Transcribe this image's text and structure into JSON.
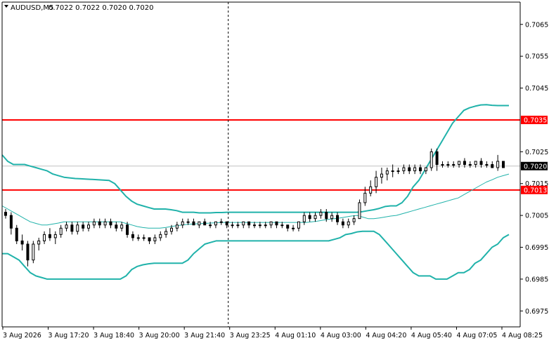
{
  "header": {
    "symbol_timeframe": "AUDUSD,M5",
    "ohlc": "0.7022 0.7022 0.7020 0.7020"
  },
  "colors": {
    "background": "#ffffff",
    "candle": "#000000",
    "band": "#20b2aa",
    "level": "#ff0000",
    "current_price_line": "#c0c0c0",
    "current_price_label_bg": "#000000",
    "cursor_line": "#000000"
  },
  "chart_data": {
    "type": "candlestick",
    "instrument": "AUDUSD",
    "timeframe": "M5",
    "ylim": [
      0.697,
      0.7072
    ],
    "y_ticks": [
      "0.7065",
      "0.7055",
      "0.7045",
      "0.7035",
      "0.7025",
      "0.7015",
      "0.7013",
      "0.7005",
      "0.6995",
      "0.6985",
      "0.6975"
    ],
    "x_ticks": [
      "3 Aug 2026",
      "3 Aug 17:20",
      "3 Aug 18:40",
      "3 Aug 20:00",
      "3 Aug 21:40",
      "3 Aug 23:25",
      "4 Aug 01:10",
      "4 Aug 03:00",
      "4 Aug 04:20",
      "4 Aug 05:40",
      "4 Aug 07:05",
      "4 Aug 08:25"
    ],
    "levels": [
      {
        "price": 0.7035,
        "label": "0.7035"
      },
      {
        "price": 0.7013,
        "label": "0.7013"
      }
    ],
    "current_price": {
      "price": 0.70205,
      "label": "0.7020"
    },
    "cursor_at_tick": 5,
    "bands": {
      "upper": [
        0.7024,
        0.7022,
        0.7021,
        0.7021,
        0.7021,
        0.70205,
        0.702,
        0.70195,
        0.7019,
        0.7018,
        0.70175,
        0.7017,
        0.70168,
        0.70166,
        0.70165,
        0.70164,
        0.70163,
        0.70162,
        0.70161,
        0.7016,
        0.7015,
        0.7013,
        0.7011,
        0.70095,
        0.70085,
        0.7008,
        0.70075,
        0.7007,
        0.7007,
        0.7007,
        0.70068,
        0.70065,
        0.7006,
        0.7006,
        0.7006,
        0.70058,
        0.70058,
        0.70058,
        0.70059,
        0.70059,
        0.7006,
        0.7006,
        0.7006,
        0.7006,
        0.7006,
        0.7006,
        0.7006,
        0.7006,
        0.7006,
        0.7006,
        0.7006,
        0.7006,
        0.7006,
        0.7006,
        0.7006,
        0.7006,
        0.7006,
        0.7006,
        0.7006,
        0.7006,
        0.7006,
        0.7006,
        0.7006,
        0.7006,
        0.70062,
        0.70065,
        0.70068,
        0.70072,
        0.70078,
        0.7008,
        0.7008,
        0.7009,
        0.7011,
        0.7014,
        0.7016,
        0.7019,
        0.7022,
        0.7025,
        0.7028,
        0.7031,
        0.7034,
        0.7036,
        0.7038,
        0.70388,
        0.70393,
        0.70397,
        0.70398,
        0.70396,
        0.70395,
        0.70395,
        0.70395
      ],
      "middle": [
        0.7008,
        0.7007,
        0.7006,
        0.7005,
        0.7004,
        0.7003,
        0.70025,
        0.7002,
        0.7002,
        0.70023,
        0.70026,
        0.7003,
        0.7003,
        0.7003,
        0.7003,
        0.7003,
        0.7003,
        0.7003,
        0.7003,
        0.7003,
        0.7003,
        0.7003,
        0.70025,
        0.7002,
        0.70015,
        0.70012,
        0.7001,
        0.7001,
        0.7001,
        0.70012,
        0.70015,
        0.70018,
        0.7002,
        0.70022,
        0.70023,
        0.70024,
        0.70025,
        0.70026,
        0.70027,
        0.70028,
        0.70028,
        0.70028,
        0.70028,
        0.70028,
        0.70028,
        0.70028,
        0.70028,
        0.70028,
        0.70028,
        0.70028,
        0.70028,
        0.70028,
        0.70028,
        0.70028,
        0.70028,
        0.7003,
        0.70032,
        0.70035,
        0.70038,
        0.7004,
        0.70042,
        0.70045,
        0.70048,
        0.7005,
        0.70045,
        0.7004,
        0.7004,
        0.70042,
        0.70045,
        0.70048,
        0.7005,
        0.70055,
        0.7006,
        0.70065,
        0.7007,
        0.70075,
        0.7008,
        0.70085,
        0.7009,
        0.70095,
        0.701,
        0.70105,
        0.70115,
        0.70125,
        0.70135,
        0.70145,
        0.70155,
        0.70162,
        0.7017,
        0.70175,
        0.7018
      ],
      "lower": [
        0.6993,
        0.6993,
        0.6992,
        0.6991,
        0.6989,
        0.6987,
        0.6986,
        0.69855,
        0.6985,
        0.6985,
        0.6985,
        0.6985,
        0.6985,
        0.6985,
        0.6985,
        0.6985,
        0.6985,
        0.6985,
        0.6985,
        0.6985,
        0.6985,
        0.6985,
        0.6986,
        0.6988,
        0.6989,
        0.69895,
        0.69898,
        0.699,
        0.699,
        0.699,
        0.699,
        0.699,
        0.699,
        0.6991,
        0.6993,
        0.69945,
        0.6996,
        0.69965,
        0.6997,
        0.6997,
        0.6997,
        0.6997,
        0.6997,
        0.6997,
        0.6997,
        0.6997,
        0.6997,
        0.6997,
        0.6997,
        0.6997,
        0.6997,
        0.6997,
        0.6997,
        0.6997,
        0.6997,
        0.6997,
        0.6997,
        0.6997,
        0.6997,
        0.69975,
        0.6998,
        0.6999,
        0.69993,
        0.69998,
        0.7,
        0.7,
        0.7,
        0.6999,
        0.6997,
        0.6995,
        0.6993,
        0.6991,
        0.6989,
        0.6987,
        0.6986,
        0.6986,
        0.6986,
        0.6985,
        0.6985,
        0.6985,
        0.6986,
        0.6987,
        0.6987,
        0.6988,
        0.699,
        0.6991,
        0.6993,
        0.6995,
        0.6996,
        0.6998,
        0.6999
      ]
    },
    "candles": [
      [
        0.7006,
        0.7007,
        0.7004,
        0.7005
      ],
      [
        0.7005,
        0.7006,
        0.6999,
        0.7001
      ],
      [
        0.7001,
        0.7002,
        0.6996,
        0.6997
      ],
      [
        0.6997,
        0.6999,
        0.6994,
        0.6996
      ],
      [
        0.6996,
        0.6997,
        0.6989,
        0.6991
      ],
      [
        0.6991,
        0.6997,
        0.699,
        0.6996
      ],
      [
        0.6996,
        0.6998,
        0.6994,
        0.6997
      ],
      [
        0.6997,
        0.7,
        0.6996,
        0.6999
      ],
      [
        0.6999,
        0.7001,
        0.6997,
        0.6998
      ],
      [
        0.6998,
        0.7,
        0.6996,
        0.6999
      ],
      [
        0.6999,
        0.7002,
        0.6998,
        0.7001
      ],
      [
        0.7001,
        0.7003,
        0.7,
        0.7002
      ],
      [
        0.7002,
        0.7003,
        0.6999,
        0.7
      ],
      [
        0.7,
        0.7003,
        0.6999,
        0.7002
      ],
      [
        0.7002,
        0.7003,
        0.7,
        0.7001
      ],
      [
        0.7001,
        0.7003,
        0.7,
        0.7002
      ],
      [
        0.7002,
        0.7004,
        0.7001,
        0.7003
      ],
      [
        0.7003,
        0.7004,
        0.7001,
        0.7002
      ],
      [
        0.7002,
        0.7004,
        0.7001,
        0.7003
      ],
      [
        0.7003,
        0.7004,
        0.7001,
        0.7002
      ],
      [
        0.7002,
        0.7003,
        0.7,
        0.7001
      ],
      [
        0.7001,
        0.7003,
        0.7,
        0.7002
      ],
      [
        0.7002,
        0.7003,
        0.6998,
        0.6999
      ],
      [
        0.6999,
        0.7,
        0.6997,
        0.6998
      ],
      [
        0.6998,
        0.6999,
        0.6997,
        0.6998
      ],
      [
        0.6998,
        0.6999,
        0.6997,
        0.6998
      ],
      [
        0.6998,
        0.6998,
        0.6996,
        0.6997
      ],
      [
        0.6997,
        0.6999,
        0.6996,
        0.6998
      ],
      [
        0.6998,
        0.7,
        0.6997,
        0.6999
      ],
      [
        0.6999,
        0.7001,
        0.6998,
        0.7
      ],
      [
        0.7,
        0.7002,
        0.6999,
        0.7001
      ],
      [
        0.7001,
        0.7003,
        0.7,
        0.7002
      ],
      [
        0.7002,
        0.7004,
        0.7001,
        0.7003
      ],
      [
        0.7003,
        0.7004,
        0.7002,
        0.7003
      ],
      [
        0.7003,
        0.7004,
        0.7002,
        0.7002
      ],
      [
        0.7002,
        0.7003,
        0.7001,
        0.7003
      ],
      [
        0.7003,
        0.7004,
        0.7002,
        0.7002
      ],
      [
        0.7002,
        0.7003,
        0.7001,
        0.7002
      ],
      [
        0.7002,
        0.7003,
        0.7001,
        0.7003
      ],
      [
        0.7003,
        0.7004,
        0.7002,
        0.7003
      ],
      [
        0.7003,
        0.7003,
        0.7001,
        0.7002
      ],
      [
        0.7002,
        0.7003,
        0.7001,
        0.7002
      ],
      [
        0.7002,
        0.7003,
        0.7001,
        0.7002
      ],
      [
        0.7002,
        0.7003,
        0.7001,
        0.7003
      ],
      [
        0.7003,
        0.7003,
        0.7001,
        0.7002
      ],
      [
        0.7002,
        0.7003,
        0.7001,
        0.7002
      ],
      [
        0.7002,
        0.7003,
        0.7001,
        0.7002
      ],
      [
        0.7002,
        0.7003,
        0.7001,
        0.7002
      ],
      [
        0.7002,
        0.7003,
        0.7001,
        0.7003
      ],
      [
        0.7003,
        0.7003,
        0.7001,
        0.7002
      ],
      [
        0.7002,
        0.7003,
        0.7001,
        0.7002
      ],
      [
        0.7002,
        0.7002,
        0.7,
        0.7001
      ],
      [
        0.7001,
        0.7002,
        0.7,
        0.7001
      ],
      [
        0.7001,
        0.7003,
        0.7,
        0.7003
      ],
      [
        0.7003,
        0.7006,
        0.7002,
        0.7005
      ],
      [
        0.7005,
        0.7006,
        0.7003,
        0.7004
      ],
      [
        0.7004,
        0.7006,
        0.7003,
        0.7005
      ],
      [
        0.7005,
        0.7007,
        0.7004,
        0.7006
      ],
      [
        0.7006,
        0.7007,
        0.7003,
        0.7004
      ],
      [
        0.7004,
        0.7006,
        0.7003,
        0.7005
      ],
      [
        0.7005,
        0.7006,
        0.7002,
        0.7003
      ],
      [
        0.7003,
        0.7004,
        0.7001,
        0.7002
      ],
      [
        0.7002,
        0.7004,
        0.7001,
        0.7003
      ],
      [
        0.7003,
        0.7005,
        0.7002,
        0.7004
      ],
      [
        0.7004,
        0.701,
        0.7004,
        0.7009
      ],
      [
        0.7009,
        0.7014,
        0.7008,
        0.7012
      ],
      [
        0.7012,
        0.7016,
        0.7011,
        0.7014
      ],
      [
        0.7014,
        0.7019,
        0.7012,
        0.7017
      ],
      [
        0.7017,
        0.702,
        0.7015,
        0.7018
      ],
      [
        0.7018,
        0.702,
        0.7016,
        0.7019
      ],
      [
        0.7019,
        0.7021,
        0.7017,
        0.7019
      ],
      [
        0.7019,
        0.702,
        0.7018,
        0.7019
      ],
      [
        0.7019,
        0.7021,
        0.7018,
        0.702
      ],
      [
        0.702,
        0.7021,
        0.7018,
        0.7019
      ],
      [
        0.7019,
        0.7021,
        0.7018,
        0.702
      ],
      [
        0.702,
        0.7021,
        0.7018,
        0.7019
      ],
      [
        0.7019,
        0.702,
        0.7018,
        0.702
      ],
      [
        0.702,
        0.7026,
        0.7019,
        0.7025
      ],
      [
        0.7025,
        0.7026,
        0.7019,
        0.7021
      ],
      [
        0.7021,
        0.7022,
        0.702,
        0.7021
      ],
      [
        0.7021,
        0.7022,
        0.702,
        0.7021
      ],
      [
        0.7021,
        0.7022,
        0.702,
        0.7021
      ],
      [
        0.7021,
        0.7022,
        0.702,
        0.7022
      ],
      [
        0.7022,
        0.7023,
        0.702,
        0.7021
      ],
      [
        0.7021,
        0.7022,
        0.702,
        0.7021
      ],
      [
        0.7021,
        0.7022,
        0.702,
        0.7022
      ],
      [
        0.7022,
        0.7023,
        0.702,
        0.7021
      ],
      [
        0.7021,
        0.7022,
        0.702,
        0.7021
      ],
      [
        0.7021,
        0.7022,
        0.702,
        0.702
      ],
      [
        0.702,
        0.7024,
        0.7019,
        0.7022
      ],
      [
        0.7022,
        0.7022,
        0.702,
        0.702
      ]
    ]
  }
}
